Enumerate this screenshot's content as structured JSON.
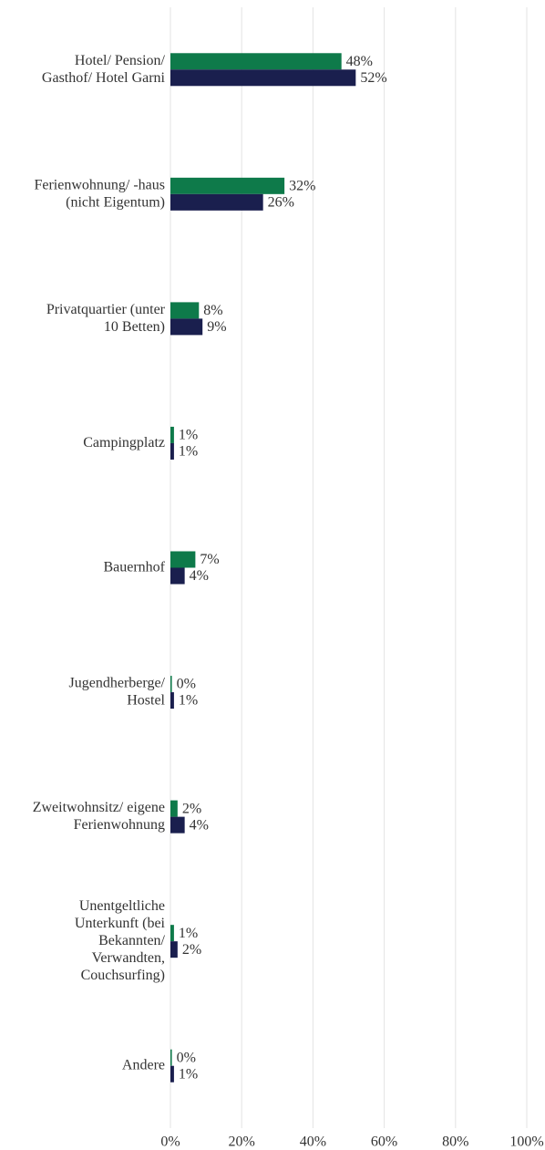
{
  "chart_data": {
    "type": "bar",
    "orientation": "horizontal",
    "categories": [
      [
        "Hotel/ Pension/",
        "Gasthof/ Hotel Garni"
      ],
      [
        "Ferienwohnung/ -haus",
        "(nicht Eigentum)"
      ],
      [
        "Privatquartier (unter",
        "10 Betten)"
      ],
      [
        "Campingplatz"
      ],
      [
        "Bauernhof"
      ],
      [
        "Jugendherberge/",
        "Hostel"
      ],
      [
        "Zweitwohnsitz/ eigene",
        "Ferienwohnung"
      ],
      [
        "Unentgeltliche",
        "Unterkunft (bei",
        "Bekannten/",
        "Verwandten,",
        "Couchsurfing)"
      ],
      [
        "Andere"
      ]
    ],
    "series": [
      {
        "color": "#0e7a4a",
        "values": [
          48,
          32,
          8,
          1,
          7,
          0.4,
          2,
          1,
          0.4
        ],
        "value_labels": [
          "48%",
          "32%",
          "8%",
          "1%",
          "7%",
          "0%",
          "2%",
          "1%",
          "0%"
        ]
      },
      {
        "color": "#1a1f4e",
        "values": [
          52,
          26,
          9,
          1,
          4,
          1,
          4,
          2,
          1
        ],
        "value_labels": [
          "52%",
          "26%",
          "9%",
          "1%",
          "4%",
          "1%",
          "4%",
          "2%",
          "1%"
        ]
      }
    ],
    "xlim": [
      0,
      100
    ],
    "xticks": [
      {
        "value": 0,
        "label": "0%"
      },
      {
        "value": 20,
        "label": "20%"
      },
      {
        "value": 40,
        "label": "40%"
      },
      {
        "value": 60,
        "label": "60%"
      },
      {
        "value": 80,
        "label": "80%"
      },
      {
        "value": 100,
        "label": "100%"
      }
    ],
    "grid": true
  }
}
